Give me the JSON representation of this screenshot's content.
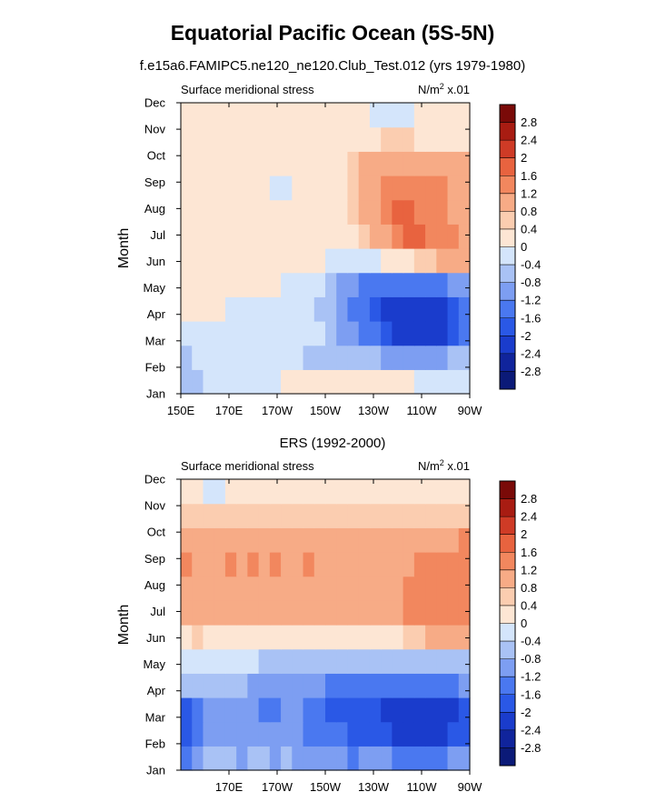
{
  "figure": {
    "title": "Equatorial Pacific Ocean (5S-5N)",
    "subtitle": "f.e15a6.FAMIPC5.ne120_ne120.Club_Test.012 (yrs 1979-1980)"
  },
  "colorbar": {
    "levels": [
      "-2.8",
      "-2.4",
      "-2",
      "-1.6",
      "-1.2",
      "-0.8",
      "-0.4",
      "0",
      "0.4",
      "0.8",
      "1.2",
      "1.6",
      "2",
      "2.4",
      "2.8"
    ],
    "colors": [
      "#0b1a78",
      "#10249c",
      "#1a3ccc",
      "#2a58e6",
      "#4a78f0",
      "#7d9ef2",
      "#a9c2f5",
      "#d4e5fb",
      "#fde6d4",
      "#fbcdb0",
      "#f7ab86",
      "#f2875e",
      "#e8633f",
      "#cf3b26",
      "#a81c12",
      "#7a0a08"
    ]
  },
  "chart_data": [
    {
      "type": "heatmap",
      "panel_title": "",
      "left_label": "Surface meridional stress",
      "right_label": "N/m",
      "right_label_sup": "2",
      "right_label_suffix": " x.01",
      "ylabel": "Month",
      "xlabel": "",
      "xticks": [
        "150E",
        "170E",
        "170W",
        "150W",
        "130W",
        "110W",
        "90W"
      ],
      "yticks": [
        "Jan",
        "Feb",
        "Mar",
        "Apr",
        "May",
        "Jun",
        "Jul",
        "Aug",
        "Sep",
        "Oct",
        "Nov",
        "Dec"
      ],
      "xlim": [
        150,
        270
      ],
      "grid": [
        [
          -0.5,
          -0.5,
          -0.2,
          -0.2,
          -0.2,
          -0.2,
          -0.2,
          -0.2,
          -0.2,
          0.1,
          0.1,
          0.1,
          0.1,
          0.1,
          0.1,
          0.1,
          0.1,
          0.1,
          0.1,
          0.1,
          0.1,
          -0.2,
          -0.2,
          -0.2,
          -0.2,
          -0.2
        ],
        [
          -0.6,
          -0.3,
          -0.2,
          -0.2,
          -0.2,
          -0.2,
          -0.2,
          -0.2,
          -0.2,
          -0.2,
          -0.2,
          -0.5,
          -0.5,
          -0.5,
          -0.5,
          -0.5,
          -0.5,
          -0.8,
          -0.9,
          -1.0,
          -1.1,
          -1.1,
          -1.0,
          -0.9,
          -0.8,
          -0.7
        ],
        [
          -0.3,
          -0.2,
          -0.2,
          -0.2,
          -0.2,
          -0.2,
          -0.2,
          -0.2,
          -0.2,
          -0.2,
          -0.2,
          -0.2,
          -0.2,
          -0.6,
          -0.9,
          -1.1,
          -1.3,
          -1.6,
          -1.8,
          -2.1,
          -2.2,
          -2.2,
          -2.2,
          -2.1,
          -1.8,
          -1.4
        ],
        [
          0.1,
          0.1,
          0.1,
          0.1,
          -0.2,
          -0.2,
          -0.2,
          -0.2,
          -0.2,
          -0.2,
          -0.2,
          -0.2,
          -0.6,
          -0.8,
          -1.1,
          -1.3,
          -1.6,
          -1.8,
          -2.1,
          -2.1,
          -2.1,
          -2.1,
          -2.1,
          -2.1,
          -1.8,
          -1.4
        ],
        [
          0.1,
          0.1,
          0.1,
          0.1,
          0.1,
          0.1,
          0.1,
          0.1,
          0.1,
          -0.2,
          -0.2,
          -0.2,
          -0.2,
          -0.6,
          -0.9,
          -1.1,
          -1.3,
          -1.3,
          -1.3,
          -1.3,
          -1.3,
          -1.3,
          -1.3,
          -1.3,
          -1.1,
          -0.9
        ],
        [
          0.1,
          0.1,
          0.1,
          0.1,
          0.1,
          0.1,
          0.1,
          0.1,
          0.1,
          0.1,
          0.1,
          0.1,
          0.1,
          -0.2,
          -0.2,
          -0.2,
          -0.2,
          -0.2,
          0.1,
          0.1,
          0.3,
          0.5,
          0.7,
          0.9,
          1.1,
          0.9
        ],
        [
          0.1,
          0.1,
          0.1,
          0.1,
          0.1,
          0.1,
          0.1,
          0.1,
          0.1,
          0.1,
          0.1,
          0.1,
          0.1,
          0.1,
          0.1,
          0.3,
          0.5,
          0.8,
          1.1,
          1.4,
          1.7,
          1.7,
          1.4,
          1.3,
          1.2,
          1.1
        ],
        [
          0.1,
          0.1,
          0.1,
          0.1,
          0.1,
          0.1,
          0.1,
          0.1,
          0.1,
          0.1,
          0.1,
          0.1,
          0.1,
          0.1,
          0.1,
          0.5,
          0.8,
          1.1,
          1.4,
          1.7,
          1.7,
          1.5,
          1.3,
          1.2,
          1.1,
          1.0
        ],
        [
          0.1,
          0.1,
          0.1,
          0.1,
          0.1,
          0.1,
          0.1,
          0.1,
          -0.2,
          -0.2,
          0.1,
          0.1,
          0.1,
          0.1,
          0.1,
          0.6,
          0.9,
          1.1,
          1.2,
          1.3,
          1.3,
          1.3,
          1.3,
          1.2,
          1.1,
          1.0
        ],
        [
          0.1,
          0.1,
          0.1,
          0.1,
          0.1,
          0.1,
          0.1,
          0.1,
          0.1,
          0.1,
          0.1,
          0.1,
          0.1,
          0.1,
          0.3,
          0.6,
          0.8,
          0.9,
          1.0,
          1.0,
          1.0,
          1.0,
          1.0,
          1.0,
          0.9,
          0.8
        ],
        [
          0.1,
          0.1,
          0.1,
          0.1,
          0.1,
          0.1,
          0.1,
          0.1,
          0.1,
          0.1,
          0.1,
          0.1,
          0.1,
          0.1,
          0.1,
          0.1,
          0.1,
          0.3,
          0.4,
          0.4,
          0.4,
          0.3,
          0.2,
          0.2,
          0.1,
          0.1
        ],
        [
          0.1,
          0.1,
          0.1,
          0.1,
          0.1,
          0.1,
          0.1,
          0.1,
          0.1,
          0.1,
          0.1,
          0.1,
          0.1,
          0.1,
          0.1,
          0.1,
          0.1,
          -0.2,
          -0.2,
          -0.2,
          -0.2,
          0.1,
          0.1,
          0.1,
          0.1,
          0.1
        ]
      ]
    },
    {
      "type": "heatmap",
      "panel_title": "ERS (1992-2000)",
      "left_label": "Surface meridional stress",
      "right_label": "N/m",
      "right_label_sup": "2",
      "right_label_suffix": " x.01",
      "ylabel": "Month",
      "xlabel": "",
      "xticks": [
        "170E",
        "170W",
        "150W",
        "130W",
        "110W",
        "90W"
      ],
      "yticks": [
        "Jan",
        "Feb",
        "Mar",
        "Apr",
        "May",
        "Jun",
        "Jul",
        "Aug",
        "Sep",
        "Oct",
        "Nov",
        "Dec"
      ],
      "xlim": [
        150,
        270
      ],
      "grid": [
        [
          -1.4,
          -1.0,
          -0.8,
          -0.6,
          -0.8,
          -0.9,
          -0.6,
          -0.8,
          -1.0,
          -0.8,
          -0.9,
          -1.0,
          -0.9,
          -1.1,
          -1.2,
          -1.3,
          -1.2,
          -1.2,
          -1.2,
          -1.3,
          -1.4,
          -1.4,
          -1.3,
          -1.3,
          -1.2,
          -1.1
        ],
        [
          -1.7,
          -1.4,
          -1.1,
          -1.0,
          -1.1,
          -1.1,
          -0.9,
          -1.1,
          -1.2,
          -1.1,
          -1.1,
          -1.3,
          -1.3,
          -1.4,
          -1.6,
          -1.7,
          -1.8,
          -1.9,
          -2.0,
          -2.1,
          -2.2,
          -2.3,
          -2.3,
          -2.2,
          -2.0,
          -1.8
        ],
        [
          -1.8,
          -1.5,
          -1.2,
          -1.1,
          -1.2,
          -1.2,
          -1.1,
          -1.3,
          -1.3,
          -1.2,
          -1.2,
          -1.5,
          -1.5,
          -1.8,
          -1.8,
          -1.8,
          -1.9,
          -2.0,
          -2.1,
          -2.2,
          -2.3,
          -2.3,
          -2.3,
          -2.3,
          -2.2,
          -2.0
        ],
        [
          -0.6,
          -0.6,
          -0.6,
          -0.6,
          -0.6,
          -0.8,
          -0.9,
          -1.0,
          -1.1,
          -1.1,
          -1.0,
          -1.2,
          -1.1,
          -1.3,
          -1.4,
          -1.5,
          -1.5,
          -1.6,
          -1.6,
          -1.5,
          -1.4,
          -1.3,
          -1.3,
          -1.3,
          -1.3,
          -1.2
        ],
        [
          -0.2,
          -0.2,
          -0.2,
          -0.3,
          -0.3,
          -0.4,
          -0.4,
          -0.5,
          -0.5,
          -0.5,
          -0.5,
          -0.5,
          -0.5,
          -0.5,
          -0.5,
          -0.6,
          -0.6,
          -0.6,
          -0.6,
          -0.6,
          -0.5,
          -0.5,
          -0.5,
          -0.5,
          -0.5,
          -0.5
        ],
        [
          0.3,
          0.4,
          0.3,
          0.3,
          0.3,
          0.2,
          0.2,
          0.1,
          0.1,
          0.1,
          0.1,
          0.1,
          0.1,
          0.1,
          0.2,
          0.2,
          0.2,
          0.2,
          0.2,
          0.3,
          0.5,
          0.6,
          0.8,
          0.9,
          0.9,
          0.8
        ],
        [
          1.0,
          1.0,
          0.9,
          0.9,
          0.9,
          0.8,
          0.9,
          0.8,
          0.9,
          0.9,
          0.9,
          0.9,
          0.9,
          1.0,
          1.0,
          1.0,
          1.0,
          1.0,
          1.0,
          1.1,
          1.3,
          1.4,
          1.4,
          1.4,
          1.4,
          1.3
        ],
        [
          1.1,
          1.0,
          1.0,
          1.0,
          1.1,
          1.1,
          1.1,
          1.0,
          1.1,
          1.0,
          1.1,
          1.1,
          1.0,
          1.0,
          1.0,
          1.1,
          1.1,
          1.0,
          1.1,
          1.1,
          1.2,
          1.3,
          1.3,
          1.3,
          1.3,
          1.3
        ],
        [
          1.3,
          1.1,
          1.1,
          1.1,
          1.2,
          1.1,
          1.2,
          1.1,
          1.2,
          1.1,
          1.1,
          1.2,
          1.1,
          1.1,
          1.0,
          1.1,
          1.1,
          1.0,
          1.1,
          1.0,
          1.1,
          1.2,
          1.2,
          1.2,
          1.3,
          1.4
        ],
        [
          0.8,
          0.8,
          0.8,
          0.9,
          0.9,
          0.8,
          0.9,
          0.8,
          0.9,
          0.8,
          0.9,
          0.9,
          0.8,
          0.8,
          0.8,
          0.8,
          0.9,
          0.9,
          0.9,
          0.9,
          0.9,
          0.9,
          1.0,
          1.0,
          1.1,
          1.2
        ],
        [
          0.5,
          0.5,
          0.5,
          0.5,
          0.5,
          0.5,
          0.4,
          0.5,
          0.5,
          0.4,
          0.5,
          0.5,
          0.4,
          0.5,
          0.5,
          0.5,
          0.6,
          0.6,
          0.6,
          0.6,
          0.7,
          0.7,
          0.7,
          0.6,
          0.6,
          0.6
        ],
        [
          0.1,
          0.1,
          -0.2,
          -0.2,
          0.1,
          0.1,
          0.1,
          0.1,
          0.2,
          0.1,
          0.2,
          0.2,
          0.2,
          0.3,
          0.3,
          0.3,
          0.3,
          0.3,
          0.3,
          0.3,
          0.3,
          0.3,
          0.3,
          0.2,
          0.2,
          0.2
        ]
      ]
    }
  ]
}
